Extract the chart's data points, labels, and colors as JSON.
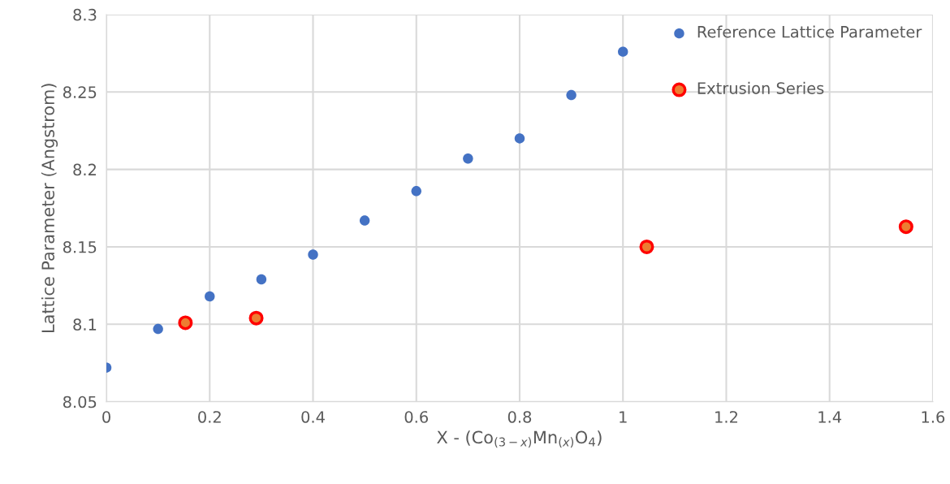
{
  "chart_data": {
    "type": "scatter",
    "xlabel": "X - (Co$_{(3−x)}$Mn$_{(x)}$O$_{4}$)",
    "ylabel": "Lattice Parameter (Angstrom)",
    "xlim": [
      0,
      1.6
    ],
    "xticks": [
      0,
      0.2,
      0.4,
      0.6,
      0.8,
      1,
      1.2,
      1.4,
      1.6
    ],
    "ylim": [
      8.05,
      8.3
    ],
    "yticks": [
      8.05,
      8.1,
      8.15,
      8.2,
      8.25,
      8.3
    ],
    "grid": true,
    "legend": "top right",
    "marker": "circle",
    "series": [
      {
        "name": "Reference Lattice Parameter",
        "color": "#4472c4",
        "x": [
          0,
          0.1,
          0.2,
          0.3,
          0.4,
          0.5,
          0.6,
          0.7,
          0.8,
          0.9,
          1.0
        ],
        "values": [
          8.072,
          8.097,
          8.118,
          8.129,
          8.145,
          8.167,
          8.186,
          8.207,
          8.22,
          8.248,
          8.276
        ]
      },
      {
        "name": "Extrusion Series",
        "color": "#ed7d31",
        "x": [
          0.153,
          0.29,
          1.046,
          1.548
        ],
        "values": [
          8.101,
          8.104,
          8.15,
          8.163
        ]
      }
    ]
  }
}
